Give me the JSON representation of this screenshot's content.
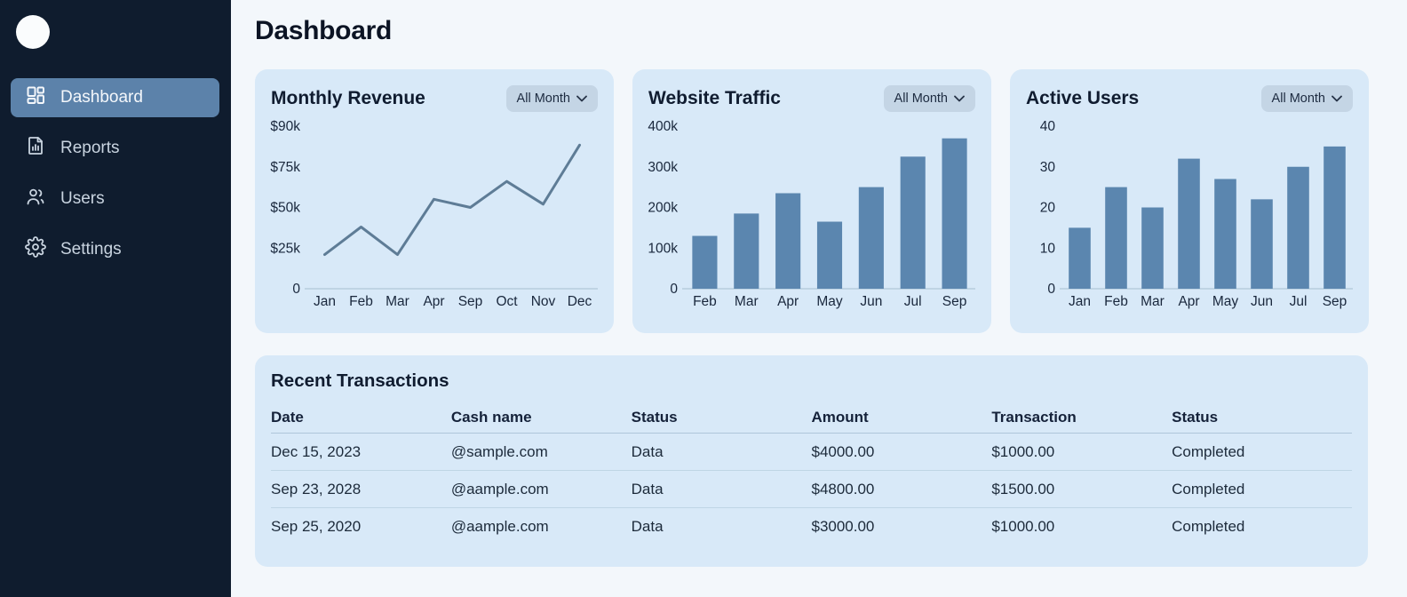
{
  "colors": {
    "sidebar_bg": "#0f1c2e",
    "active_item_bg": "#5c82aa",
    "page_bg": "#f3f7fb",
    "card_bg": "#d8e9f8",
    "dropdown_bg": "#c4d5e5",
    "bar_color": "#5b86af",
    "line_color": "#5e7c96",
    "axis_color": "#bfd4e4"
  },
  "sidebar": {
    "items": [
      {
        "label": "Dashboard",
        "icon": "dashboard-grid-icon",
        "active": true
      },
      {
        "label": "Reports",
        "icon": "report-file-icon",
        "active": false
      },
      {
        "label": "Users",
        "icon": "users-icon",
        "active": false
      },
      {
        "label": "Settings",
        "icon": "gear-icon",
        "active": false
      }
    ]
  },
  "header": {
    "title": "Dashboard"
  },
  "chart_data": [
    {
      "type": "line",
      "title": "Monthly Revenue",
      "filter_label": "All Month",
      "categories": [
        "Jan",
        "Feb",
        "Mar",
        "Apr",
        "Sep",
        "Oct",
        "Nov",
        "Dec"
      ],
      "values": [
        21,
        38,
        21,
        55,
        50,
        66,
        52,
        83
      ],
      "tick_labels": [
        "$90k",
        "$75k",
        "$50k",
        "$25k",
        "0"
      ],
      "tick_values": [
        90,
        75,
        50,
        25,
        0
      ],
      "unit": "thousand dollars",
      "color": "#5e7c96",
      "grid": false,
      "legend": "none"
    },
    {
      "type": "bar",
      "title": "Website Traffic",
      "filter_label": "All Month",
      "categories": [
        "Feb",
        "Mar",
        "Apr",
        "May",
        "Jun",
        "Jul",
        "Sep"
      ],
      "values": [
        130,
        185,
        235,
        165,
        250,
        325,
        370
      ],
      "tick_labels": [
        "400k",
        "300k",
        "200k",
        "100k",
        "0"
      ],
      "tick_values": [
        400,
        300,
        200,
        100,
        0
      ],
      "unit": "thousand visits",
      "color": "#5b86af",
      "grid": false,
      "legend": "none"
    },
    {
      "type": "bar",
      "title": "Active Users",
      "filter_label": "All Month",
      "categories": [
        "Jan",
        "Feb",
        "Mar",
        "Apr",
        "May",
        "Jun",
        "Jul",
        "Sep"
      ],
      "values": [
        15,
        25,
        20,
        32,
        27,
        22,
        30,
        35
      ],
      "tick_labels": [
        "40",
        "30",
        "20",
        "10",
        "0"
      ],
      "tick_values": [
        40,
        30,
        20,
        10,
        0
      ],
      "unit": "users",
      "color": "#5b86af",
      "grid": false,
      "legend": "none"
    }
  ],
  "transactions": {
    "title": "Recent Transactions",
    "columns": [
      "Date",
      "Cash name",
      "Status",
      "Amount",
      "Transaction",
      "Status"
    ],
    "rows": [
      [
        "Dec 15, 2023",
        "@sample.com",
        "Data",
        "$4000.00",
        "$1000.00",
        "Completed"
      ],
      [
        "Sep 23, 2028",
        "@aample.com",
        "Data",
        "$4800.00",
        "$1500.00",
        "Completed"
      ],
      [
        "Sep 25, 2020",
        "@aample.com",
        "Data",
        "$3000.00",
        "$1000.00",
        "Completed"
      ]
    ]
  }
}
